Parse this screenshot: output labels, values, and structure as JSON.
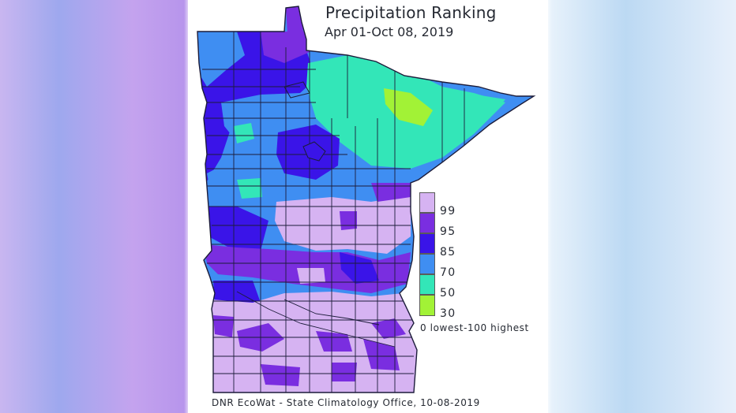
{
  "map": {
    "title": "Precipitation Ranking",
    "period": "Apr 01-Oct 08, 2019",
    "legend": {
      "levels": [
        {
          "label": "99",
          "color": "#d6b3f2"
        },
        {
          "label": "95",
          "color": "#7a2ee0"
        },
        {
          "label": "85",
          "color": "#3a14e8"
        },
        {
          "label": "70",
          "color": "#3f8ef2"
        },
        {
          "label": "50",
          "color": "#33e6b8"
        },
        {
          "label": "30",
          "color": "#a2f236"
        }
      ],
      "scale_note": "0 lowest-100 highest"
    },
    "credit": "DNR EcoWat - State Climatology Office, 10-08-2019"
  }
}
